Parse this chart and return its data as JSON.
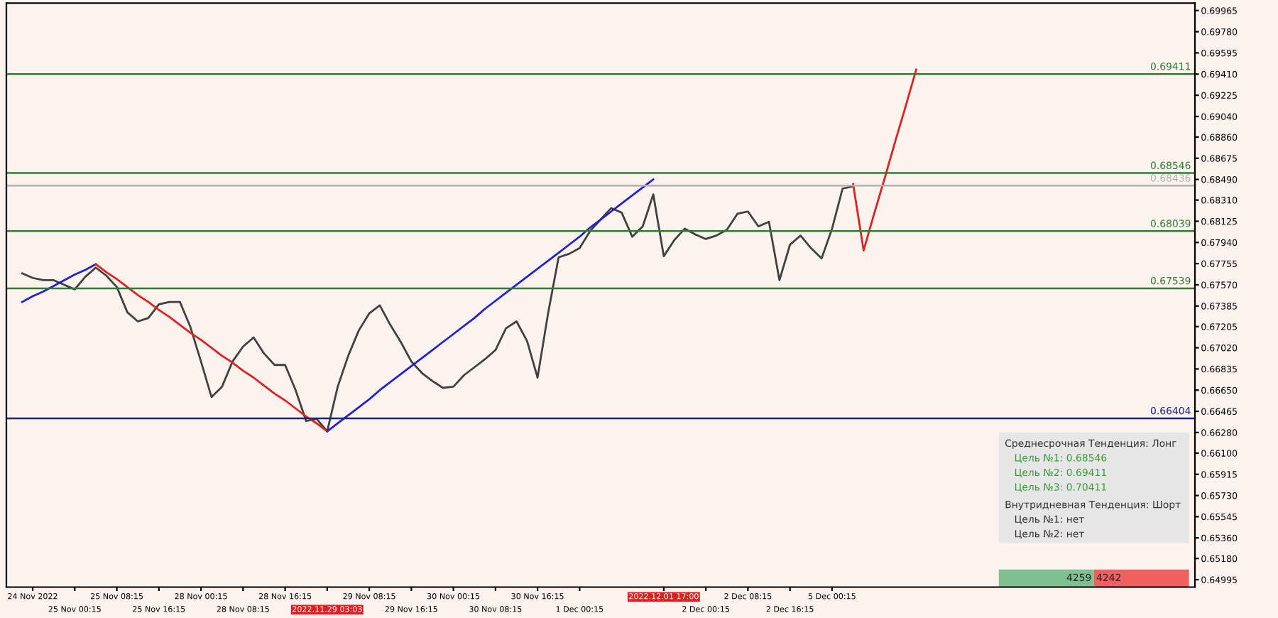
{
  "chart_data": {
    "type": "line",
    "ylim": [
      0.6493,
      0.7003
    ],
    "categories": [
      null,
      null,
      "24 Nov 2022",
      null,
      null,
      null,
      "25 Nov 00:15",
      null,
      null,
      null,
      "25 Nov 08:15",
      null,
      null,
      null,
      "25 Nov 16:15",
      null,
      null,
      null,
      "28 Nov 00:15",
      null,
      null,
      null,
      "28 Nov 08:15",
      null,
      null,
      null,
      "28 Nov 16:15",
      null,
      null,
      null,
      "2022.11.29 03:03",
      null,
      null,
      null,
      "29 Nov 08:15",
      null,
      null,
      null,
      "29 Nov 16:15",
      null,
      null,
      null,
      "30 Nov 00:15",
      null,
      null,
      null,
      "30 Nov 08:15",
      null,
      null,
      null,
      "30 Nov 16:15",
      null,
      null,
      null,
      "1 Dec 00:15",
      null,
      null,
      null,
      null,
      null,
      null,
      null,
      "2022.12.01 17:00",
      null,
      null,
      null,
      "2 Dec 00:15",
      null,
      null,
      null,
      "2 Dec 08:15",
      null,
      null,
      null,
      "2 Dec 16:15",
      null,
      null,
      null,
      "5 Dec 00:15",
      null,
      null,
      null,
      null,
      null,
      null,
      null,
      null,
      null,
      null,
      null,
      null,
      null,
      null,
      null,
      null,
      null,
      null,
      null,
      null,
      null,
      null,
      null,
      null,
      null,
      null,
      null,
      null,
      null,
      null,
      null,
      null,
      null,
      null
    ],
    "yticks": [
      {
        "value": 0.69965,
        "label": "0.69965"
      },
      {
        "value": 0.6978,
        "label": "0.69780"
      },
      {
        "value": 0.69595,
        "label": "0.69595"
      },
      {
        "value": 0.6941,
        "label": "0.69410"
      },
      {
        "value": 0.69225,
        "label": "0.69225"
      },
      {
        "value": 0.6904,
        "label": "0.69040"
      },
      {
        "value": 0.6886,
        "label": "0.68860"
      },
      {
        "value": 0.68675,
        "label": "0.68675"
      },
      {
        "value": 0.6849,
        "label": "0.68490"
      },
      {
        "value": 0.6831,
        "label": "0.68310"
      },
      {
        "value": 0.68125,
        "label": "0.68125"
      },
      {
        "value": 0.6794,
        "label": "0.67940"
      },
      {
        "value": 0.67755,
        "label": "0.67755"
      },
      {
        "value": 0.6757,
        "label": "0.67570"
      },
      {
        "value": 0.67385,
        "label": "0.67385"
      },
      {
        "value": 0.67205,
        "label": "0.67205"
      },
      {
        "value": 0.6702,
        "label": "0.67020"
      },
      {
        "value": 0.66835,
        "label": "0.66835"
      },
      {
        "value": 0.6665,
        "label": "0.66650"
      },
      {
        "value": 0.66465,
        "label": "0.66465"
      },
      {
        "value": 0.6628,
        "label": "0.66280"
      },
      {
        "value": 0.661,
        "label": "0.66100"
      },
      {
        "value": 0.65915,
        "label": "0.65915"
      },
      {
        "value": 0.6573,
        "label": "0.65730"
      },
      {
        "value": 0.65545,
        "label": "0.65545"
      },
      {
        "value": 0.6536,
        "label": "0.65360"
      },
      {
        "value": 0.6518,
        "label": "0.65180"
      },
      {
        "value": 0.64995,
        "label": "0.64995"
      }
    ],
    "series": [
      {
        "color": "#404040",
        "values": [
          null,
          0.6767,
          0.6763,
          0.6761,
          0.6761,
          0.6757,
          0.6753,
          0.6764,
          0.6772,
          0.6765,
          0.6755,
          0.6733,
          0.6725,
          0.6728,
          0.674,
          0.6742,
          0.6742,
          0.672,
          0.669,
          0.6659,
          0.6668,
          0.669,
          0.6703,
          0.6711,
          0.6697,
          0.6687,
          0.6687,
          0.6665,
          0.6638,
          0.664,
          0.6629,
          0.6668,
          0.6695,
          0.6717,
          0.6732,
          0.6739,
          0.6722,
          0.6707,
          0.669,
          0.668,
          0.6673,
          0.6667,
          0.6668,
          0.6678,
          0.6685,
          0.6692,
          0.67,
          0.6719,
          0.6725,
          0.6708,
          0.6676,
          0.6732,
          0.6781,
          0.6784,
          0.6789,
          0.6804,
          0.6814,
          0.6824,
          0.682,
          0.6799,
          0.6808,
          0.6836,
          0.6782,
          0.6796,
          0.6806,
          0.6801,
          0.6797,
          0.68,
          0.6805,
          0.6819,
          0.6821,
          0.6808,
          0.6812,
          0.6761,
          0.6792,
          0.68,
          0.6789,
          0.678,
          0.6806,
          0.6841,
          0.6843,
          null,
          null,
          null,
          null,
          null,
          null,
          null,
          null,
          null,
          null,
          null,
          null,
          null,
          null,
          null,
          null,
          null,
          null,
          null,
          null,
          null,
          null,
          null,
          null,
          null,
          null,
          null,
          null,
          null,
          null,
          null,
          null
        ]
      },
      {
        "color": "#2222cc",
        "values": [
          null,
          0.6742,
          0.6747,
          0.6751,
          0.6756,
          0.6761,
          0.6766,
          0.677,
          0.6775,
          null,
          null,
          null,
          null,
          null,
          null,
          null,
          null,
          null,
          null,
          null,
          null,
          null,
          null,
          null,
          null,
          null,
          null,
          null,
          null,
          null,
          null,
          null,
          null,
          null,
          null,
          null,
          null,
          null,
          null,
          null,
          null,
          null,
          null,
          null,
          null,
          null,
          null,
          null,
          null,
          null,
          null,
          null,
          null,
          null,
          null,
          null,
          null,
          null,
          null,
          null,
          null,
          null,
          null,
          null,
          null,
          null,
          null,
          null,
          null,
          null,
          null,
          null,
          null,
          null,
          null,
          null,
          null,
          null,
          null,
          null,
          null,
          null,
          null,
          null,
          null,
          null,
          null,
          null,
          null,
          null,
          null,
          null,
          null,
          null,
          null,
          null,
          null,
          null,
          null,
          null,
          null,
          null,
          null,
          null,
          null,
          null,
          null,
          null,
          null,
          null,
          null,
          null,
          null
        ]
      },
      {
        "color": "#dd2222",
        "values": [
          null,
          null,
          null,
          null,
          null,
          null,
          null,
          null,
          0.6775,
          0.6768,
          0.6762,
          0.6755,
          0.6748,
          0.6742,
          0.6735,
          0.6729,
          0.6722,
          0.6715,
          0.6709,
          0.6702,
          0.6695,
          0.6689,
          0.6682,
          0.6676,
          0.6669,
          0.6662,
          0.6656,
          0.6649,
          0.6642,
          0.6636,
          0.6629,
          null,
          null,
          null,
          null,
          null,
          null,
          null,
          null,
          null,
          null,
          null,
          null,
          null,
          null,
          null,
          null,
          null,
          null,
          null,
          null,
          null,
          null,
          null,
          null,
          null,
          null,
          null,
          null,
          null,
          null,
          null,
          null,
          null,
          null,
          null,
          null,
          null,
          null,
          null,
          null,
          null,
          null,
          null,
          null,
          null,
          null,
          null,
          null,
          null,
          null,
          null,
          null,
          null,
          null,
          null,
          null,
          null,
          null,
          null,
          null,
          null,
          null,
          null,
          null,
          null,
          null,
          null,
          null,
          null,
          null,
          null,
          null,
          null,
          null,
          null,
          null,
          null,
          null,
          null,
          null,
          null,
          null
        ]
      },
      {
        "color": "#2222cc",
        "values": [
          null,
          null,
          null,
          null,
          null,
          null,
          null,
          null,
          null,
          null,
          null,
          null,
          null,
          null,
          null,
          null,
          null,
          null,
          null,
          null,
          null,
          null,
          null,
          null,
          null,
          null,
          null,
          null,
          null,
          null,
          0.6629,
          0.6636,
          0.6643,
          0.665,
          0.6657,
          0.6665,
          0.6672,
          0.6679,
          0.6686,
          0.6693,
          0.67,
          0.6707,
          0.6714,
          0.6721,
          0.6728,
          0.6736,
          0.6743,
          0.675,
          0.6757,
          0.6764,
          0.6771,
          0.6778,
          0.6785,
          0.6792,
          0.6799,
          0.6807,
          0.6814,
          0.6821,
          0.6828,
          0.6835,
          0.6842,
          0.6849,
          null,
          null,
          null,
          null,
          null,
          null,
          null,
          null,
          null,
          null,
          null,
          null,
          null,
          null,
          null,
          null,
          null,
          null,
          null,
          null,
          null,
          null,
          null,
          null,
          null,
          null,
          null,
          null,
          null,
          null,
          null,
          null,
          null,
          null,
          null,
          null,
          null,
          null,
          null,
          null,
          null,
          null,
          null,
          null,
          null,
          null,
          null,
          null,
          null,
          null,
          null
        ]
      },
      {
        "color": "#dd2222",
        "values": [
          null,
          null,
          null,
          null,
          null,
          null,
          null,
          null,
          null,
          null,
          null,
          null,
          null,
          null,
          null,
          null,
          null,
          null,
          null,
          null,
          null,
          null,
          null,
          null,
          null,
          null,
          null,
          null,
          null,
          null,
          null,
          null,
          null,
          null,
          null,
          null,
          null,
          null,
          null,
          null,
          null,
          null,
          null,
          null,
          null,
          null,
          null,
          null,
          null,
          null,
          null,
          null,
          null,
          null,
          null,
          null,
          null,
          null,
          null,
          null,
          null,
          null,
          null,
          null,
          null,
          null,
          null,
          null,
          null,
          null,
          null,
          null,
          null,
          null,
          null,
          null,
          null,
          null,
          null,
          null,
          0.6845,
          0.6787,
          0.6819,
          0.685,
          0.6882,
          0.6913,
          0.6945,
          null,
          null,
          null,
          null,
          null,
          null,
          null,
          null,
          null,
          null,
          null,
          null,
          null,
          null,
          null,
          null,
          null,
          null,
          null,
          null,
          null,
          null,
          null,
          null,
          null,
          null
        ]
      }
    ],
    "ref_lines": [
      {
        "axis": "y",
        "value": 0.69411,
        "label": "0.69411",
        "color": "#2e7d32"
      },
      {
        "axis": "y",
        "value": 0.68546,
        "label": "0.68546",
        "color": "#2e7d32"
      },
      {
        "axis": "y",
        "value": 0.68436,
        "label": "0.68436",
        "color": "#b0b0b0"
      },
      {
        "axis": "y",
        "value": 0.68039,
        "label": "0.68039",
        "color": "#2e7d32"
      },
      {
        "axis": "y",
        "value": 0.67539,
        "label": "0.67539",
        "color": "#2e7d32"
      },
      {
        "axis": "y",
        "value": 0.66404,
        "label": "0.66404",
        "color": "#1a237e"
      }
    ],
    "annotations": [
      "Среднесрочная Тенденция: Лонг",
      "Цель №1: 0.68546",
      "Цель №2: 0.69411",
      "Цель №3: 0.70411",
      "Внутридневная Тенденция: Шорт",
      "Цель №1: нет",
      "Цель №2: нет",
      "4259",
      "4242"
    ]
  }
}
